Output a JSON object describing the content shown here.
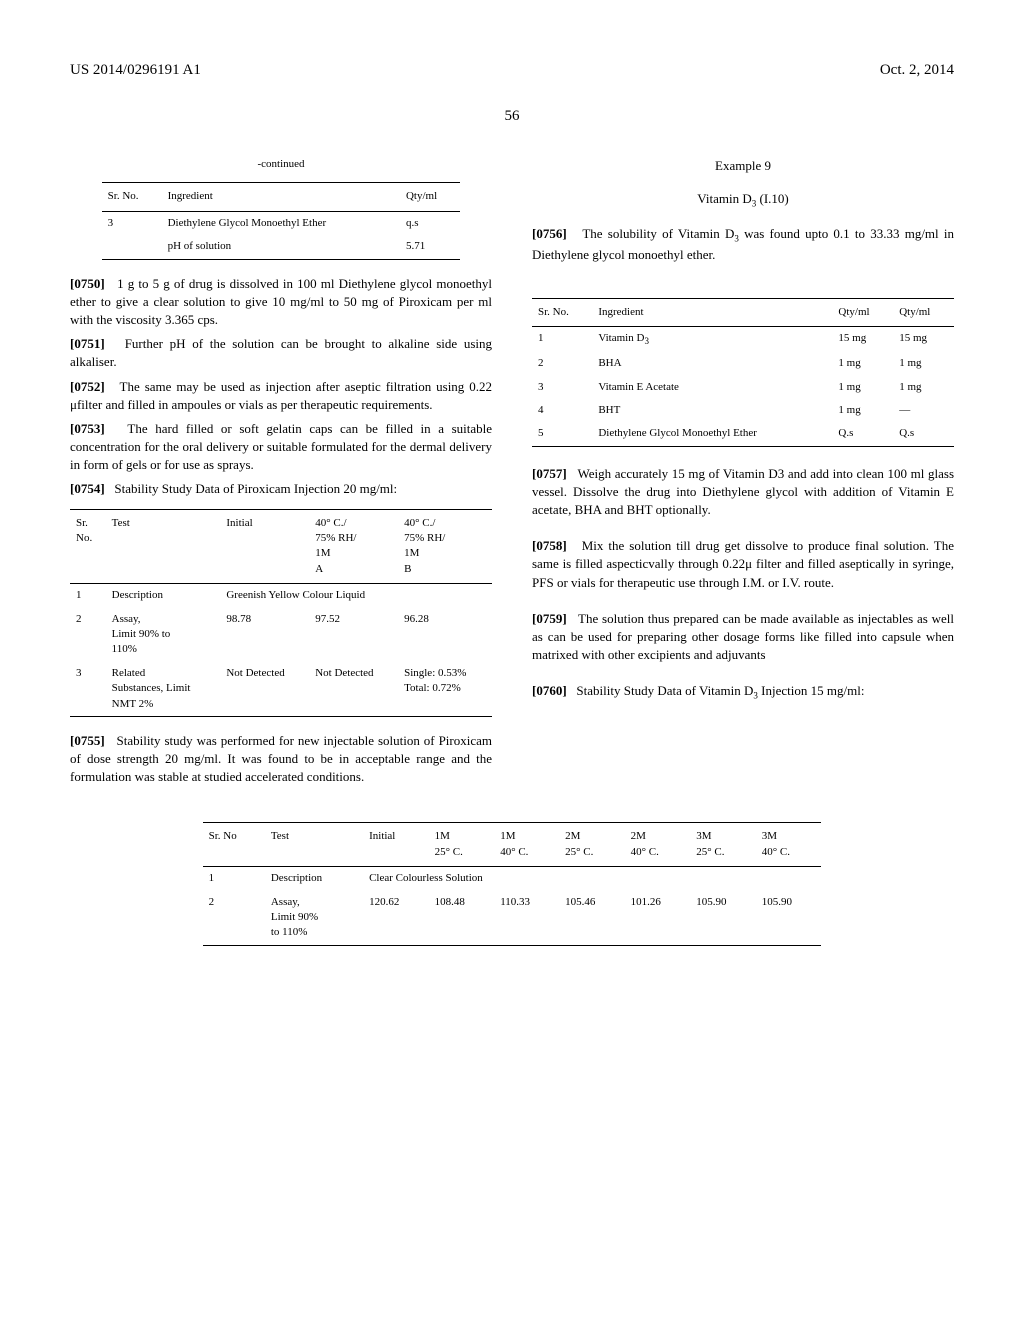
{
  "header": {
    "left": "US 2014/0296191 A1",
    "right": "Oct. 2, 2014"
  },
  "page_number": "56",
  "left_column": {
    "continued_label": "-continued",
    "table1": {
      "headers": [
        "Sr. No.",
        "Ingredient",
        "Qty/ml"
      ],
      "rows": [
        [
          "3",
          "Diethylene Glycol Monoethyl Ether",
          "q.s"
        ],
        [
          "",
          "pH of solution",
          "5.71"
        ]
      ]
    },
    "paragraphs": [
      {
        "num": "[0750]",
        "text": "1 g to 5 g of drug is dissolved in 100 ml Diethylene glycol monoethyl ether to give a clear solution to give 10 mg/ml to 50 mg of Piroxicam per ml with the viscosity 3.365 cps."
      },
      {
        "num": "[0751]",
        "text": "Further pH of the solution can be brought to alkaline side using alkaliser."
      },
      {
        "num": "[0752]",
        "text": "The same may be used as injection after aseptic filtration using 0.22 μfilter and filled in ampoules or vials as per therapeutic requirements."
      },
      {
        "num": "[0753]",
        "text": "The hard filled or soft gelatin caps can be filled in a suitable concentration for the oral delivery or suitable formulated for the dermal delivery in form of gels or for use as sprays."
      },
      {
        "num": "[0754]",
        "text": "Stability Study Data of Piroxicam Injection 20 mg/ml:"
      }
    ],
    "table2": {
      "headers": [
        "Sr. No.",
        "Test",
        "Initial",
        "40° C./ 75% RH/ 1M A",
        "40° C./ 75% RH/ 1M B"
      ],
      "rows": [
        [
          "1",
          "Description",
          "Greenish Yellow Colour Liquid",
          "",
          ""
        ],
        [
          "2",
          "Assay, Limit 90% to 110%",
          "98.78",
          "97.52",
          "96.28"
        ],
        [
          "3",
          "Related Substances, Limit NMT 2%",
          "Not Detected",
          "Not Detected",
          "Single: 0.53% Total: 0.72%"
        ]
      ]
    },
    "paragraph_after_table2": {
      "num": "[0755]",
      "text": "Stability study was performed for new injectable solution of Piroxicam of dose strength 20 mg/ml. It was found to be in acceptable range and the formulation was stable at studied accelerated conditions."
    }
  },
  "right_column": {
    "example_title": "Example 9",
    "example_subtitle": "Vitamin D₃ (I.10)",
    "paragraph1": {
      "num": "[0756]",
      "text": "The solubility of Vitamin D₃ was found upto 0.1 to 33.33 mg/ml in Diethylene glycol monoethyl ether."
    },
    "table3": {
      "headers": [
        "Sr. No.",
        "Ingredient",
        "Qty/ml",
        "Qty/ml"
      ],
      "rows": [
        [
          "1",
          "Vitamin D₃",
          "15 mg",
          "15 mg"
        ],
        [
          "2",
          "BHA",
          "1 mg",
          "1 mg"
        ],
        [
          "3",
          "Vitamin E Acetate",
          "1 mg",
          "1 mg"
        ],
        [
          "4",
          "BHT",
          "1 mg",
          "—"
        ],
        [
          "5",
          "Diethylene Glycol Monoethyl Ether",
          "Q.s",
          "Q.s"
        ]
      ]
    },
    "paragraphs": [
      {
        "num": "[0757]",
        "text": "Weigh accurately 15 mg of Vitamin D3 and add into clean 100 ml glass vessel. Dissolve the drug into Diethylene glycol with addition of Vitamin E acetate, BHA and BHT optionally."
      },
      {
        "num": "[0758]",
        "text": "Mix the solution till drug get dissolve to produce final solution. The same is filled aspecticvally through 0.22μ filter and filled aseptically in syringe, PFS or vials for therapeutic use through I.M. or I.V. route."
      },
      {
        "num": "[0759]",
        "text": "The solution thus prepared can be made available as injectables as well as can be used for preparing other dosage forms like filled into capsule when matrixed with other excipients and adjuvants"
      },
      {
        "num": "[0760]",
        "text": "Stability Study Data of Vitamin D₃ Injection 15 mg/ml:"
      }
    ]
  },
  "bottom_table": {
    "headers": [
      "Sr. No",
      "Test",
      "Initial",
      "1M 25° C.",
      "1M 40° C.",
      "2M 25° C.",
      "2M 40° C.",
      "3M 25° C.",
      "3M 40° C."
    ],
    "rows": [
      [
        "1",
        "Description",
        "Clear Colourless Solution",
        "",
        "",
        "",
        "",
        "",
        ""
      ],
      [
        "2",
        "Assay, Limit 90% to 110%",
        "120.62",
        "108.48",
        "110.33",
        "105.46",
        "101.26",
        "105.90",
        "105.90"
      ]
    ]
  }
}
